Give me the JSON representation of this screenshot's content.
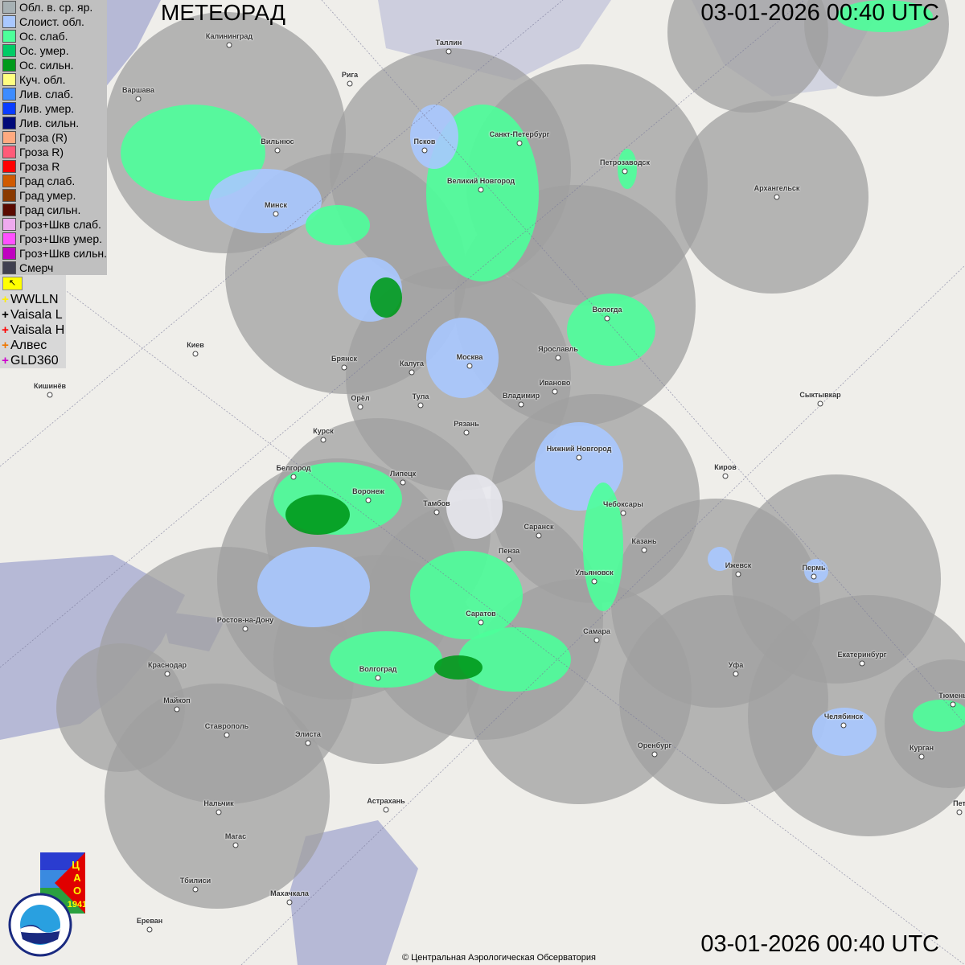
{
  "header": {
    "title": "МЕТЕОРАД",
    "datetime_top": "03-01-2026  00:40 UTC",
    "datetime_bottom": "03-01-2026  00:40 UTC"
  },
  "legend": [
    {
      "label": "Обл. в. ср. яр.",
      "color": "#a7b1b4"
    },
    {
      "label": "Слоист. обл.",
      "color": "#a9c8ff"
    },
    {
      "label": "Ос. слаб.",
      "color": "#4dff9a"
    },
    {
      "label": "Ос. умер.",
      "color": "#00cc66"
    },
    {
      "label": "Ос. сильн.",
      "color": "#009a1c"
    },
    {
      "label": "Куч. обл.",
      "color": "#ffff80"
    },
    {
      "label": "Лив. слаб.",
      "color": "#3d8cff"
    },
    {
      "label": "Лив. умер.",
      "color": "#0a3cff"
    },
    {
      "label": "Лив. сильн.",
      "color": "#000a78"
    },
    {
      "label": "Гроза (R)",
      "color": "#ffaa80"
    },
    {
      "label": "Гроза R)",
      "color": "#ff5a78"
    },
    {
      "label": "Гроза R",
      "color": "#ff0000"
    },
    {
      "label": "Град слаб.",
      "color": "#d05a00"
    },
    {
      "label": "Град умер.",
      "color": "#8a3a00"
    },
    {
      "label": "Град сильн.",
      "color": "#5a0a00"
    },
    {
      "label": "Гроз+Шкв слаб.",
      "color": "#eeaaee"
    },
    {
      "label": "Гроз+Шкв умер.",
      "color": "#ff50ff"
    },
    {
      "label": "Гроз+Шкв сильн.",
      "color": "#c000c0"
    },
    {
      "label": "Смерч",
      "color": "#404050"
    }
  ],
  "lightning": [
    {
      "label": "WWLLN",
      "color": "#ffee00"
    },
    {
      "label": "Vaisala L",
      "color": "#000000"
    },
    {
      "label": "Vaisala H",
      "color": "#ff0000"
    },
    {
      "label": "Алвес",
      "color": "#ee7700"
    },
    {
      "label": "GLD360",
      "color": "#cc00cc"
    }
  ],
  "cities": [
    "Калининград",
    "Таллин",
    "Рига",
    "Варшава",
    "Вильнюс",
    "Псков",
    "Санкт-Петербург",
    "Петрозаводск",
    "Архангельск",
    "Великий Новгород",
    "Минск",
    "Вологда",
    "Киев",
    "Брянск",
    "Ярославль",
    "Калуга",
    "Москва",
    "Иваново",
    "Кишинёв",
    "Тула",
    "Владимир",
    "Орёл",
    "Сыктывкар",
    "Рязань",
    "Курск",
    "Нижний Новгород",
    "Киров",
    "Белгород",
    "Липецк",
    "Воронеж",
    "Тамбов",
    "Чебоксары",
    "Саранск",
    "Казань",
    "Пенза",
    "Ижевск",
    "Пермь",
    "Ульяновск",
    "Ростов-на-Дону",
    "Саратов",
    "Самара",
    "Екатеринбург",
    "Краснодар",
    "Уфа",
    "Волгоград",
    "Тюмень",
    "Майкоп",
    "Челябинск",
    "Ставрополь",
    "Элиста",
    "Оренбург",
    "Курган",
    "Нальчик",
    "Астрахань",
    "Магас",
    "Тбилиси",
    "Махачкала",
    "Ереван",
    "Пет"
  ],
  "logos": {
    "cao": "ЦАО 1941",
    "roshydromet": "РОСГИДРОМЕТ ROSHYDROMET"
  },
  "footer": {
    "copyright": "© Центральная Аэрологическая Обсерватория"
  }
}
